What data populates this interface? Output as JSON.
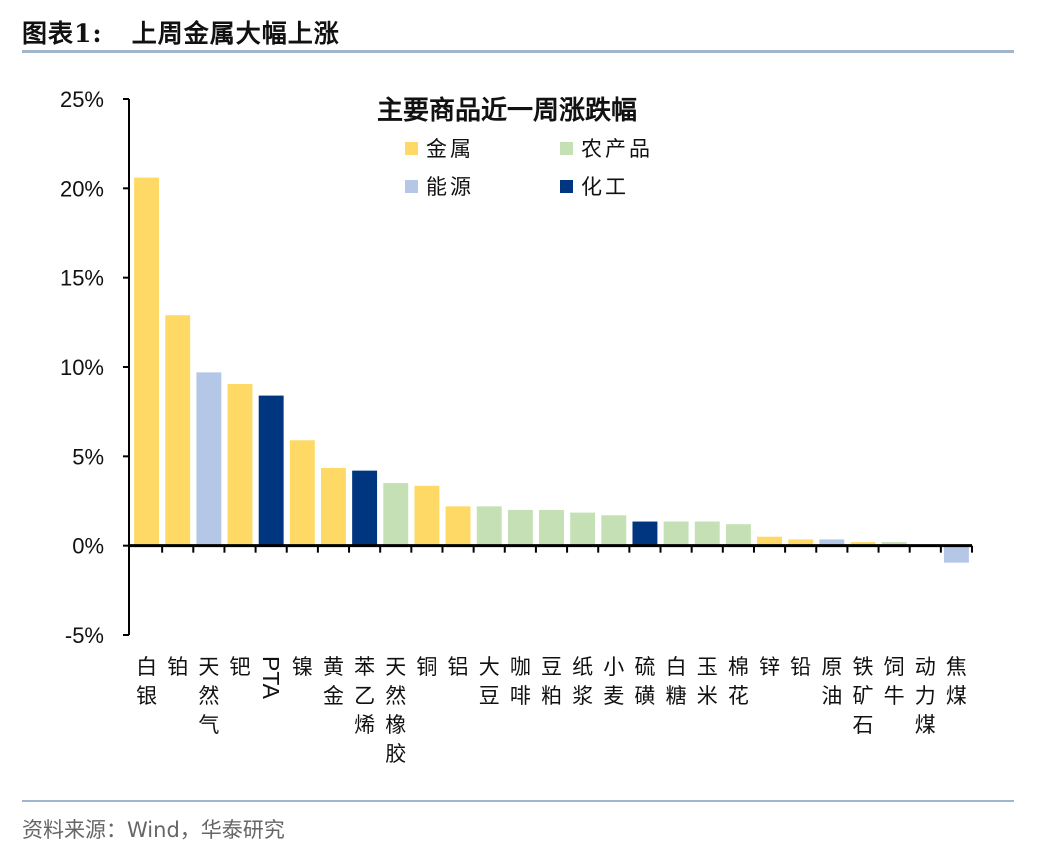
{
  "figure": {
    "label": "图表1:",
    "title": "上周金属大幅上涨",
    "source": "资料来源：Wind，华泰研究"
  },
  "chart_data": {
    "type": "bar",
    "title": "主要商品近一周涨跌幅",
    "xlabel": "",
    "ylabel": "",
    "ylim": [
      -5,
      25
    ],
    "yticks": [
      "25%",
      "20%",
      "15%",
      "10%",
      "5%",
      "0%",
      "-5%"
    ],
    "ytick_values": [
      25,
      20,
      15,
      10,
      5,
      0,
      -5
    ],
    "grid": false,
    "legend_placement": "top-center",
    "groups": [
      {
        "name": "金属",
        "color": "#ffd966"
      },
      {
        "name": "农产品",
        "color": "#c5e0b4"
      },
      {
        "name": "能源",
        "color": "#b4c7e7"
      },
      {
        "name": "化工",
        "color": "#003580"
      }
    ],
    "categories": [
      "白银",
      "铂",
      "天然气",
      "钯",
      "PTA",
      "镍",
      "黄金",
      "苯乙烯",
      "天然橡胶",
      "铜",
      "铝",
      "大豆",
      "咖啡",
      "豆粕",
      "纸浆",
      "小麦",
      "硫磺",
      "白糖",
      "玉米",
      "棉花",
      "锌",
      "铅",
      "原油",
      "铁矿石",
      "饲牛",
      "动力煤",
      "焦煤"
    ],
    "category_group": [
      "金属",
      "金属",
      "能源",
      "金属",
      "化工",
      "金属",
      "金属",
      "化工",
      "农产品",
      "金属",
      "金属",
      "农产品",
      "农产品",
      "农产品",
      "农产品",
      "农产品",
      "化工",
      "农产品",
      "农产品",
      "农产品",
      "金属",
      "金属",
      "能源",
      "金属",
      "农产品",
      "能源",
      "能源"
    ],
    "values": [
      20.6,
      12.9,
      9.7,
      9.05,
      8.4,
      5.9,
      4.35,
      4.2,
      3.5,
      3.35,
      2.2,
      2.2,
      2.0,
      2.0,
      1.85,
      1.7,
      1.35,
      1.35,
      1.35,
      1.2,
      0.5,
      0.35,
      0.35,
      0.2,
      0.2,
      0.0,
      -0.95
    ]
  }
}
